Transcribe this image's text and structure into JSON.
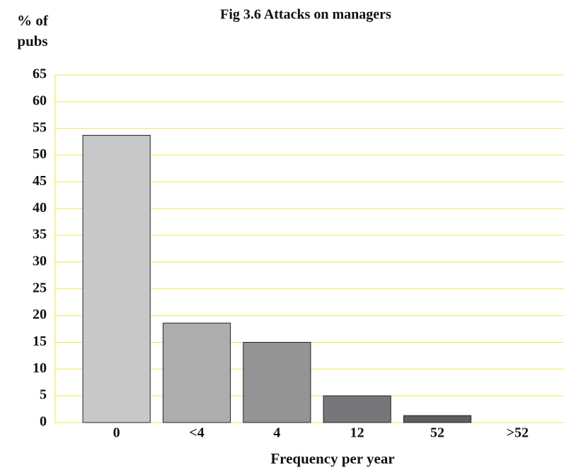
{
  "chart_data": {
    "type": "bar",
    "title": "Fig 3.6 Attacks on managers",
    "ylabel": [
      "% of",
      "pubs"
    ],
    "xlabel": "Frequency per year",
    "categories": [
      "0",
      "<4",
      "4",
      "12",
      "52",
      ">52"
    ],
    "values": [
      53.7,
      18.6,
      15,
      5,
      1.3,
      0
    ],
    "colors": [
      "#c8c8ca",
      "#adadb0",
      "#949497",
      "#77777b",
      "#5e5e61",
      "#4a4a4d"
    ],
    "ylim": [
      0,
      65
    ],
    "yticks": [
      0,
      5,
      10,
      15,
      20,
      25,
      30,
      35,
      40,
      45,
      50,
      55,
      60,
      65
    ],
    "grid": true,
    "grid_color": "#f2e34a"
  }
}
